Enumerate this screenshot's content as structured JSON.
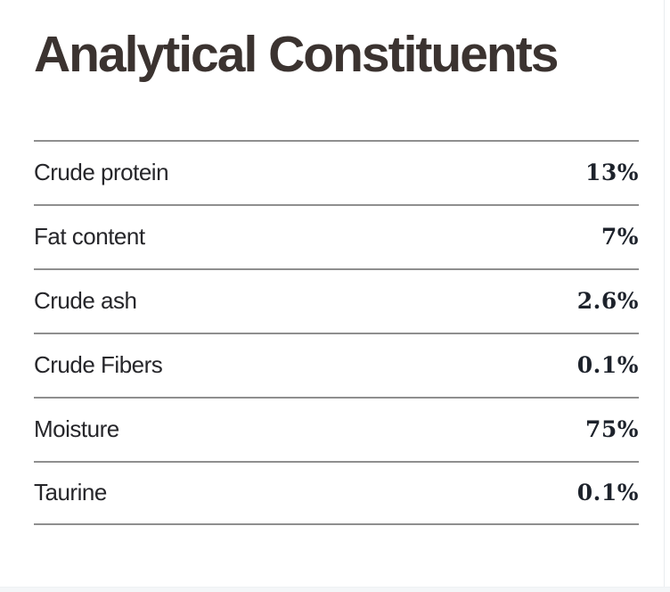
{
  "page": {
    "title": "Analytical Constituents"
  },
  "table": {
    "rows": [
      {
        "label": "Crude protein",
        "value": "13%"
      },
      {
        "label": "Fat content",
        "value": "7%"
      },
      {
        "label": "Crude ash",
        "value": "2.6%"
      },
      {
        "label": "Crude Fibers",
        "value": "0.1%"
      },
      {
        "label": "Moisture",
        "value": "75%"
      },
      {
        "label": "Taurine",
        "value": "0.1%"
      }
    ]
  },
  "colors": {
    "title_text": "#3b3330",
    "label_text": "#26262a",
    "value_text": "#1d222b",
    "divider": "#8f8f8f",
    "page_edge": "#e9ecef",
    "bottom_strip": "#f4f6f8"
  }
}
